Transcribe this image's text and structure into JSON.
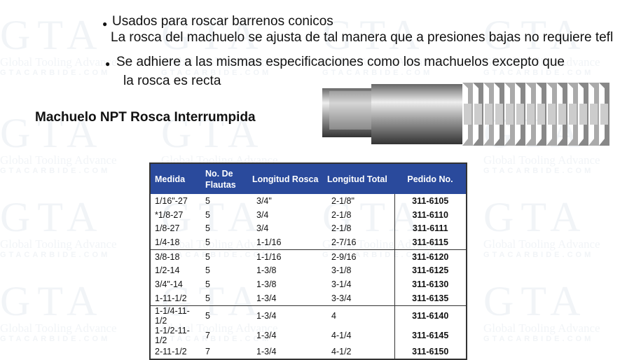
{
  "bullets": [
    {
      "text": "Usados para roscar barrenos conicos",
      "cont": "La rosca del machuelo se ajusta de tal manera que a presiones bajas no requiere tefl"
    },
    {
      "text": "Se adhiere a las mismas especificaciones como los machuelos excepto que",
      "cont": "la rosca es recta"
    }
  ],
  "title": "Machuelo NPT Rosca Interrumpida",
  "watermark": {
    "logo": "GTA",
    "name": "Global Tooling Advance",
    "site": "GTACARBIDE.COM"
  },
  "table": {
    "headers": [
      "Medida",
      "No. De Flautas",
      "Longitud Rosca",
      "Longitud Total",
      "Pedido No."
    ],
    "rows": [
      [
        "1/16\"-27",
        "5",
        "3/4\"",
        "2-1/8\"",
        "311-6105"
      ],
      [
        "*1/8-27",
        "5",
        "3/4",
        "2-1/8",
        "311-6110"
      ],
      [
        "1/8-27",
        "5",
        "3/4",
        "2-1/8",
        "311-6111"
      ],
      [
        "1/4-18",
        "5",
        "1-1/16",
        "2-7/16",
        "311-6115"
      ],
      [
        "3/8-18",
        "5",
        "1-1/16",
        "2-9/16",
        "311-6120"
      ],
      [
        "1/2-14",
        "5",
        "1-3/8",
        "3-1/8",
        "311-6125"
      ],
      [
        "3/4\"-14",
        "5",
        "1-3/8",
        "3-1/4",
        "311-6130"
      ],
      [
        "1-11-1/2",
        "5",
        "1-3/4",
        "3-3/4",
        "311-6135"
      ],
      [
        "1-1/4-11-1/2",
        "5",
        "1-3/4",
        "4",
        "311-6140"
      ],
      [
        "1-1/2-11-1/2",
        "7",
        "1-3/4",
        "4-1/4",
        "311-6145"
      ],
      [
        "2-11-1/2",
        "7",
        "1-3/4",
        "4-1/2",
        "311-6150"
      ]
    ]
  },
  "colors": {
    "header": "#2a4a9c"
  }
}
